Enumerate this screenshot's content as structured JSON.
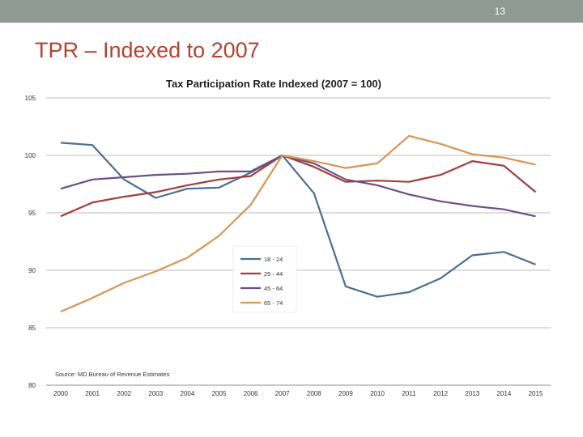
{
  "slide": {
    "number": "13",
    "title": "TPR – Indexed to 2007"
  },
  "colors": {
    "top_bar": "#8f9a92",
    "title": "#b5432f"
  },
  "chart_data": {
    "type": "line",
    "title": "Tax Participation Rate Indexed (2007 = 100)",
    "source": "Source: MD Bureau of Revenue Estimates",
    "x": [
      "2000",
      "2001",
      "2002",
      "2003",
      "2004",
      "2005",
      "2006",
      "2007",
      "2008",
      "2009",
      "2010",
      "2011",
      "2012",
      "2013",
      "2014",
      "2015"
    ],
    "ylim": [
      80,
      105
    ],
    "yticks": [
      80,
      85,
      90,
      95,
      100,
      105
    ],
    "grid": true,
    "legend_placement": "center",
    "series": [
      {
        "name": "18 - 24",
        "color": "#4a6f94",
        "values": [
          101.1,
          100.9,
          97.9,
          96.3,
          97.1,
          97.2,
          98.5,
          100.0,
          96.7,
          88.6,
          87.7,
          88.1,
          89.3,
          91.3,
          91.6,
          90.5
        ]
      },
      {
        "name": "25 - 44",
        "color": "#a23d3a",
        "values": [
          94.7,
          95.9,
          96.4,
          96.8,
          97.4,
          97.9,
          98.2,
          100.0,
          99.0,
          97.7,
          97.8,
          97.7,
          98.3,
          99.5,
          99.1,
          96.8
        ]
      },
      {
        "name": "45 - 64",
        "color": "#6c4f86",
        "values": [
          97.1,
          97.9,
          98.1,
          98.3,
          98.4,
          98.6,
          98.6,
          100.0,
          99.3,
          97.9,
          97.4,
          96.6,
          96.0,
          95.6,
          95.3,
          94.7
        ]
      },
      {
        "name": "65 - 74",
        "color": "#d99450",
        "values": [
          86.4,
          87.6,
          88.9,
          89.9,
          91.1,
          93.0,
          95.7,
          100.0,
          99.5,
          98.9,
          99.3,
          101.7,
          101.0,
          100.1,
          99.8,
          99.2
        ]
      }
    ]
  }
}
